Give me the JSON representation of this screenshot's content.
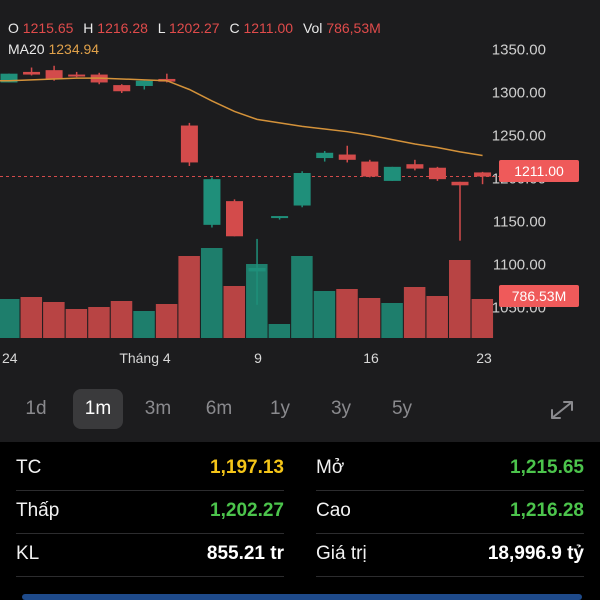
{
  "ohlc": {
    "o_label": "O",
    "o_value": "1215.65",
    "h_label": "H",
    "h_value": "1216.28",
    "l_label": "L",
    "l_value": "1202.27",
    "c_label": "C",
    "c_value": "1211.00",
    "vol_label": "Vol",
    "vol_value": "786,53M"
  },
  "ma": {
    "label": "MA20",
    "value": "1234.94"
  },
  "y_ticks": [
    "1350.00",
    "1300.00",
    "1250.00",
    "1200.00",
    "1150.00",
    "1100.00",
    "1050.00"
  ],
  "price_tag": "1211.00",
  "volume_tag": "786.53M",
  "x_ticks": [
    "24",
    "Tháng 4",
    "9",
    "16",
    "23"
  ],
  "chart_data": {
    "type": "candlestick",
    "ylim": [
      1025,
      1372
    ],
    "candles": [
      {
        "o": 1318,
        "h": 1328,
        "l": 1318,
        "c": 1328
      },
      {
        "o": 1330,
        "h": 1335,
        "l": 1326,
        "c": 1327
      },
      {
        "o": 1332,
        "h": 1337,
        "l": 1320,
        "c": 1322
      },
      {
        "o": 1327,
        "h": 1330,
        "l": 1324,
        "c": 1326
      },
      {
        "o": 1327,
        "h": 1329,
        "l": 1316,
        "c": 1318
      },
      {
        "o": 1315,
        "h": 1316,
        "l": 1306,
        "c": 1308
      },
      {
        "o": 1314,
        "h": 1320,
        "l": 1310,
        "c": 1320
      },
      {
        "o": 1322,
        "h": 1328,
        "l": 1318,
        "c": 1319
      },
      {
        "o": 1269,
        "h": 1272,
        "l": 1223,
        "c": 1227
      },
      {
        "o": 1156,
        "h": 1210,
        "l": 1153,
        "c": 1208
      },
      {
        "o": 1183,
        "h": 1185,
        "l": 1143,
        "c": 1143
      },
      {
        "o": 1103,
        "h": 1140,
        "l": 1065,
        "c": 1107
      },
      {
        "o": 1164,
        "h": 1166,
        "l": 1162,
        "c": 1166
      },
      {
        "o": 1178,
        "h": 1217,
        "l": 1176,
        "c": 1215
      },
      {
        "o": 1232,
        "h": 1240,
        "l": 1228,
        "c": 1238
      },
      {
        "o": 1236,
        "h": 1246,
        "l": 1227,
        "c": 1230
      },
      {
        "o": 1228,
        "h": 1230,
        "l": 1210,
        "c": 1211
      },
      {
        "o": 1206,
        "h": 1222,
        "l": 1206,
        "c": 1222
      },
      {
        "o": 1225,
        "h": 1230,
        "l": 1218,
        "c": 1220
      },
      {
        "o": 1221,
        "h": 1222,
        "l": 1206,
        "c": 1208
      },
      {
        "o": 1205,
        "h": 1205,
        "l": 1138,
        "c": 1201
      },
      {
        "o": 1215.65,
        "h": 1216.28,
        "l": 1202.27,
        "c": 1211.0
      }
    ],
    "ma20": [
      1320,
      1321,
      1322,
      1323,
      1323,
      1322,
      1321,
      1320,
      1310,
      1297,
      1285,
      1276,
      1272,
      1268,
      1265,
      1262,
      1258,
      1253,
      1248,
      1244,
      1239,
      1234.94
    ],
    "volume": [
      {
        "v": 0.39,
        "up": true
      },
      {
        "v": 0.41,
        "up": false
      },
      {
        "v": 0.36,
        "up": false
      },
      {
        "v": 0.29,
        "up": false
      },
      {
        "v": 0.31,
        "up": false
      },
      {
        "v": 0.37,
        "up": false
      },
      {
        "v": 0.27,
        "up": true
      },
      {
        "v": 0.34,
        "up": false
      },
      {
        "v": 0.82,
        "up": false
      },
      {
        "v": 0.9,
        "up": true
      },
      {
        "v": 0.52,
        "up": false
      },
      {
        "v": 0.74,
        "up": true
      },
      {
        "v": 0.14,
        "up": true
      },
      {
        "v": 0.82,
        "up": true
      },
      {
        "v": 0.47,
        "up": true
      },
      {
        "v": 0.49,
        "up": false
      },
      {
        "v": 0.4,
        "up": false
      },
      {
        "v": 0.35,
        "up": true
      },
      {
        "v": 0.51,
        "up": false
      },
      {
        "v": 0.42,
        "up": false
      },
      {
        "v": 0.78,
        "up": false
      },
      {
        "v": 0.39,
        "up": false
      }
    ]
  },
  "ranges": [
    "1d",
    "1m",
    "3m",
    "6m",
    "1y",
    "3y",
    "5y"
  ],
  "active_range": "1m",
  "stats": {
    "tc_label": "TC",
    "tc_value": "1,197.13",
    "thap_label": "Thấp",
    "thap_value": "1,202.27",
    "kl_label": "KL",
    "kl_value": "855.21 tr",
    "mo_label": "Mở",
    "mo_value": "1,215.65",
    "cao_label": "Cao",
    "cao_value": "1,216.28",
    "giatri_label": "Giá trị",
    "giatri_value": "18,996.9 tỷ"
  },
  "colors": {
    "up": "#1f8f7a",
    "down": "#d34b4b",
    "ma": "#d4923a",
    "yellow": "#f5c518",
    "green": "#4cc44c",
    "white": "#ffffff"
  }
}
